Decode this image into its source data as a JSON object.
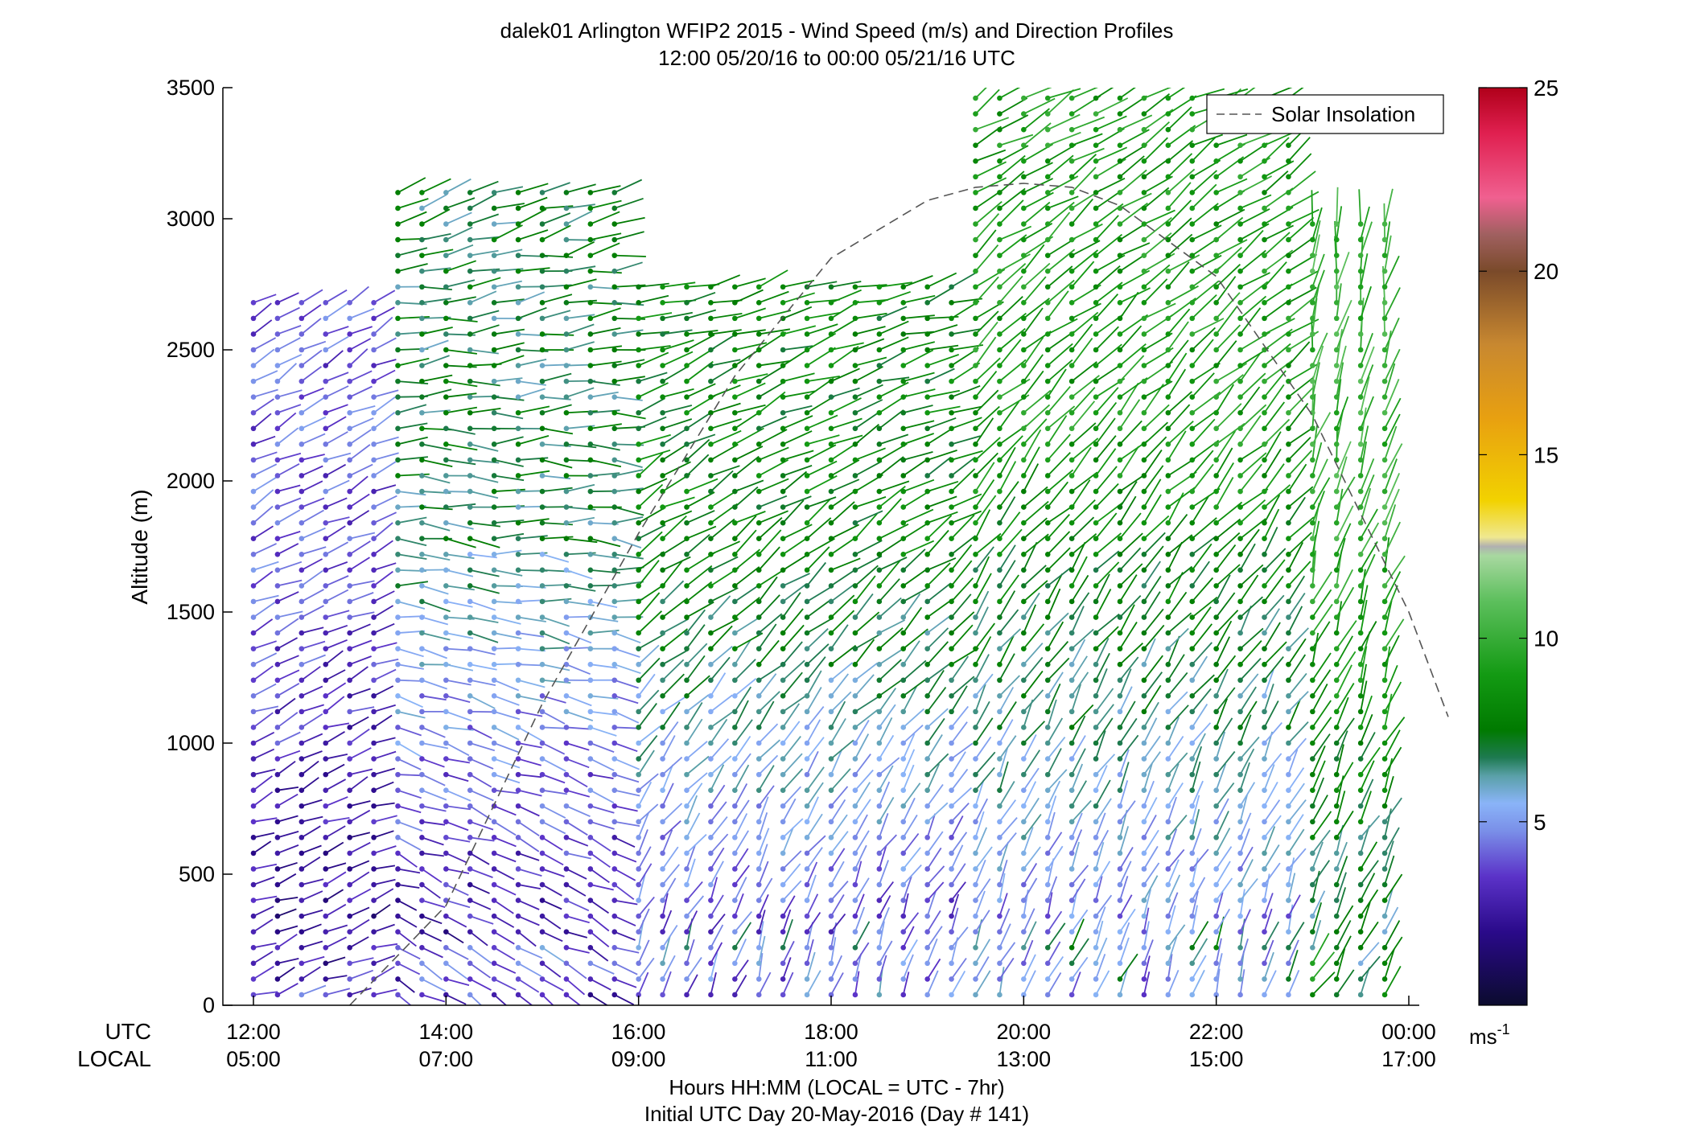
{
  "chart_data": {
    "type": "scatter",
    "title": "dalek01 Arlington WFIP2 2015 - Wind Speed (m/s) and Direction Profiles",
    "subtitle": "12:00 05/20/16 to 00:00 05/21/16  UTC",
    "ylabel": "Altitude (m)",
    "ylim": [
      0,
      3500
    ],
    "yticks": [
      "0",
      "500",
      "1000",
      "1500",
      "2000",
      "2500",
      "3000",
      "3500"
    ],
    "xlim": [
      12,
      24
    ],
    "xaxis": {
      "utc_row_label": "UTC",
      "local_row_label": "LOCAL",
      "utc_ticks": [
        "12:00",
        "14:00",
        "16:00",
        "18:00",
        "20:00",
        "22:00",
        "00:00"
      ],
      "local_ticks": [
        "05:00",
        "07:00",
        "09:00",
        "11:00",
        "13:00",
        "15:00",
        "17:00"
      ],
      "xlabel": "Hours HH:MM  (LOCAL = UTC - 7hr)",
      "xlabel2": "Initial UTC Day 20-May-2016 (Day # 141)"
    },
    "colorbar": {
      "ticks": [
        "5",
        "10",
        "15",
        "20",
        "25"
      ],
      "range": [
        0,
        25
      ],
      "unit_base": "ms",
      "unit_exp": "-1"
    },
    "legend": {
      "entry": "Solar Insolation",
      "placement": "top-right",
      "style": "dashed"
    },
    "solar_insolation_curve": {
      "x": [
        13.0,
        14.0,
        15.0,
        16.0,
        17.0,
        18.0,
        19.0,
        19.5,
        20.0,
        20.5,
        21.0,
        22.0,
        23.0,
        24.0,
        24.5
      ],
      "y": [
        0,
        380,
        1150,
        1800,
        2400,
        2850,
        3070,
        3120,
        3135,
        3120,
        3050,
        2780,
        2250,
        1500,
        1100
      ]
    },
    "series": [
      {
        "time_range": [
          12.0,
          13.5
        ],
        "alt_top": 2700,
        "speed_low": 2,
        "speed_high": 4,
        "dir_low": 250,
        "dir_high": 240
      },
      {
        "time_range": [
          13.5,
          16.0
        ],
        "alt_top": 3100,
        "speed_low": 2,
        "speed_high": 7,
        "dir_low": 300,
        "dir_high": 255
      },
      {
        "time_range": [
          16.0,
          19.5
        ],
        "alt_top": 2750,
        "speed_low": 3,
        "speed_high": 8,
        "dir_low": 200,
        "dir_high": 255
      },
      {
        "time_range": [
          19.5,
          23.0
        ],
        "alt_top": 3500,
        "speed_low": 4,
        "speed_high": 9,
        "dir_low": 200,
        "dir_high": 240
      },
      {
        "time_range": [
          23.0,
          24.0
        ],
        "alt_top": 3000,
        "speed_low": 6,
        "speed_high": 10,
        "dir_low": 210,
        "dir_high": 190
      }
    ]
  }
}
